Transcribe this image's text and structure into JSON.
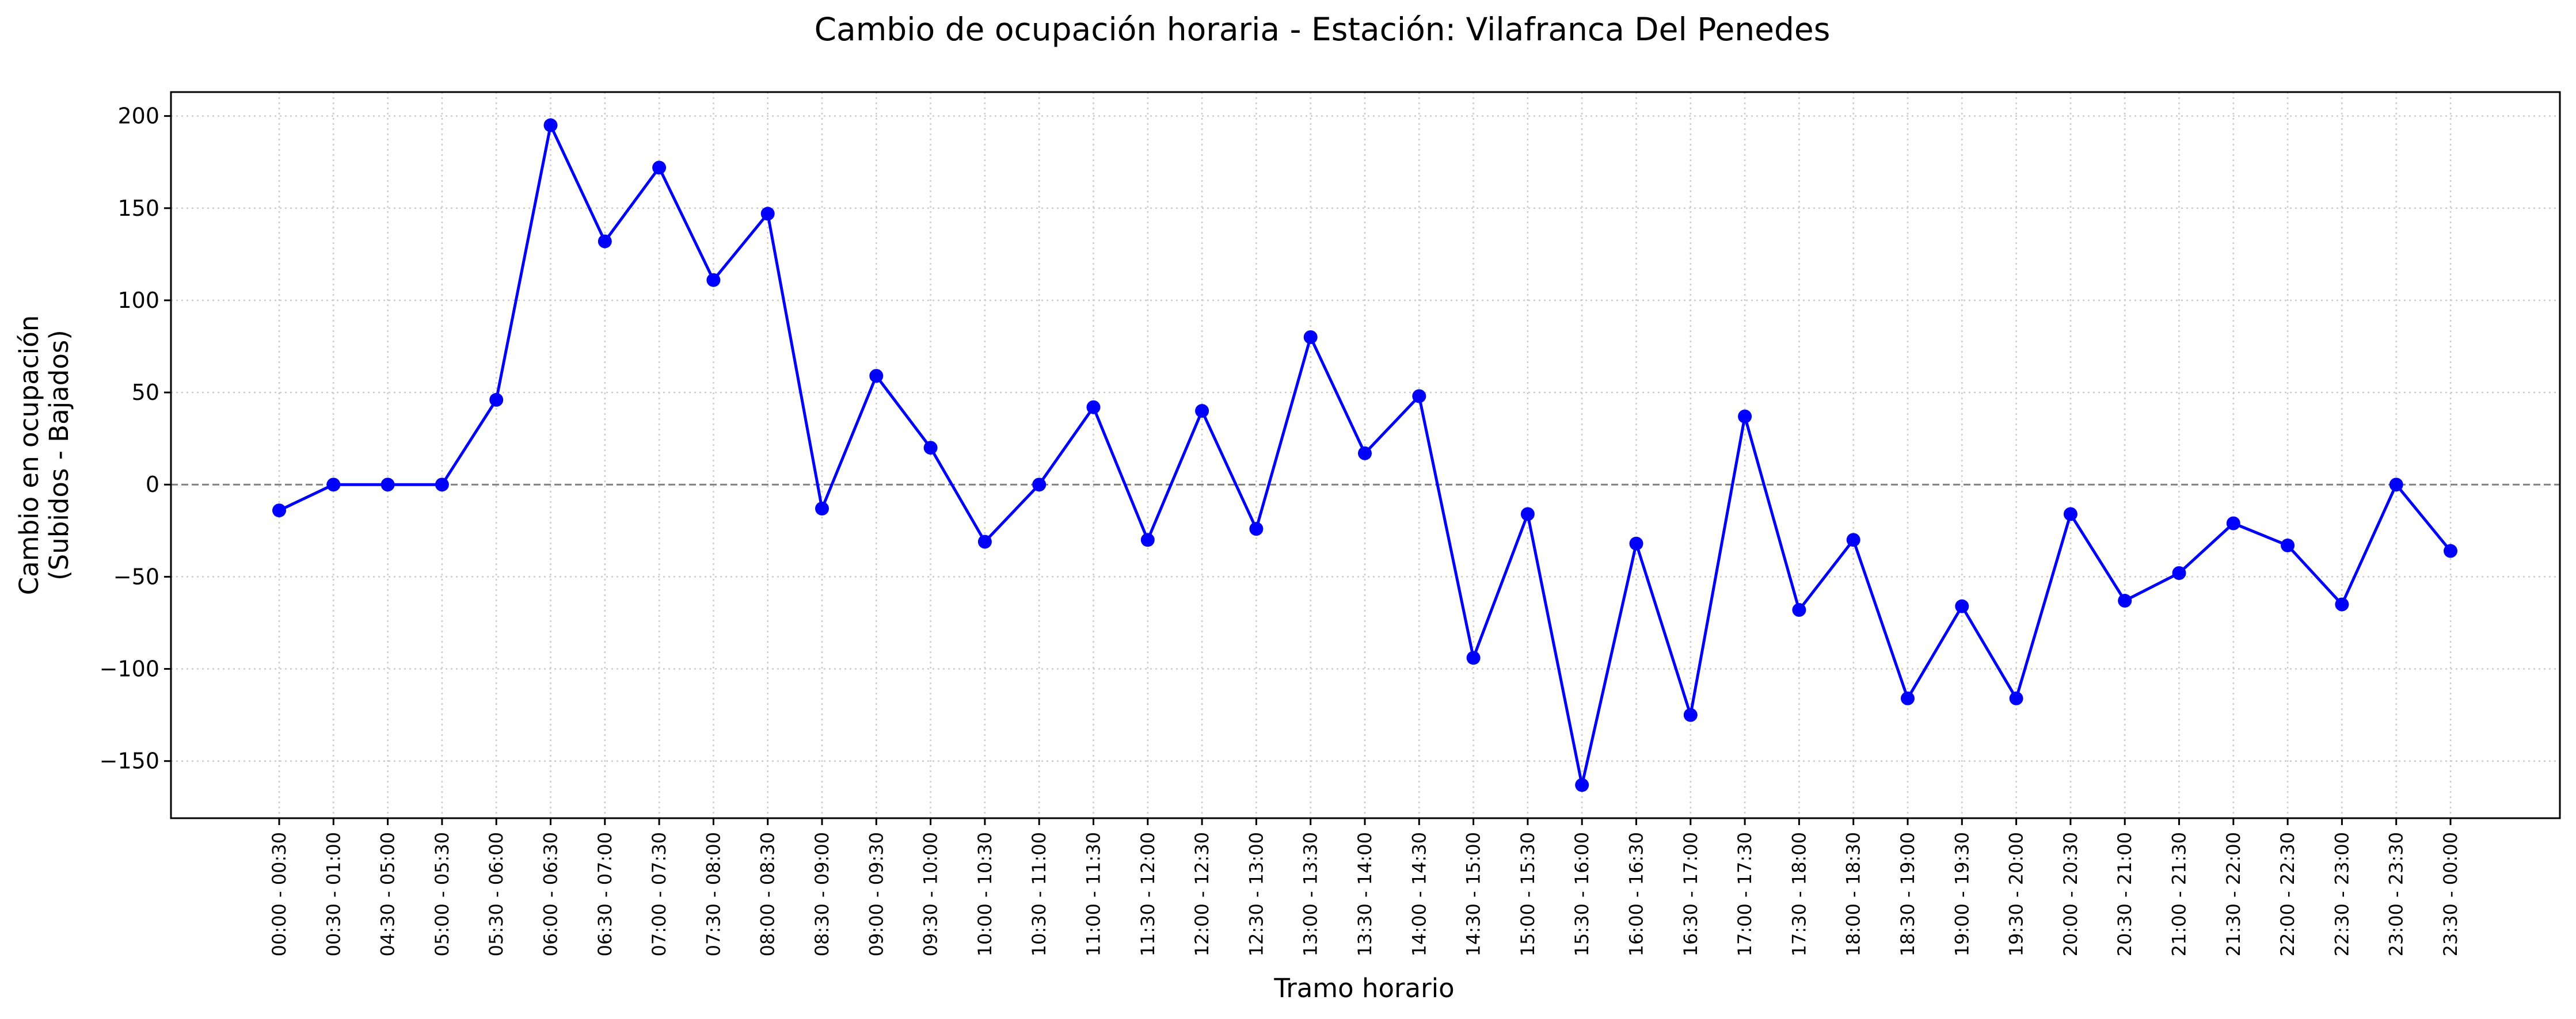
{
  "chart_data": {
    "type": "line",
    "title": "Cambio de ocupación horaria - Estación: Vilafranca Del Penedes",
    "xlabel": "Tramo horario",
    "ylabel_line1": "Cambio en ocupación",
    "ylabel_line2": "(Subidos - Bajados)",
    "ylim": [
      -181,
      213
    ],
    "yticks": [
      -150,
      -100,
      -50,
      0,
      50,
      100,
      150,
      200
    ],
    "ytick_labels": [
      "−150",
      "−100",
      "−50",
      "0",
      "50",
      "100",
      "150",
      "200"
    ],
    "grid": true,
    "reference_line": 0,
    "line_color": "#0000ff",
    "grid_color": "#cccccc",
    "reference_color": "#808080",
    "categories": [
      "00:00 - 00:30",
      "00:30 - 01:00",
      "04:30 - 05:00",
      "05:00 - 05:30",
      "05:30 - 06:00",
      "06:00 - 06:30",
      "06:30 - 07:00",
      "07:00 - 07:30",
      "07:30 - 08:00",
      "08:00 - 08:30",
      "08:30 - 09:00",
      "09:00 - 09:30",
      "09:30 - 10:00",
      "10:00 - 10:30",
      "10:30 - 11:00",
      "11:00 - 11:30",
      "11:30 - 12:00",
      "12:00 - 12:30",
      "12:30 - 13:00",
      "13:00 - 13:30",
      "13:30 - 14:00",
      "14:00 - 14:30",
      "14:30 - 15:00",
      "15:00 - 15:30",
      "15:30 - 16:00",
      "16:00 - 16:30",
      "16:30 - 17:00",
      "17:00 - 17:30",
      "17:30 - 18:00",
      "18:00 - 18:30",
      "18:30 - 19:00",
      "19:00 - 19:30",
      "19:30 - 20:00",
      "20:00 - 20:30",
      "20:30 - 21:00",
      "21:00 - 21:30",
      "21:30 - 22:00",
      "22:00 - 22:30",
      "22:30 - 23:00",
      "23:00 - 23:30",
      "23:30 - 00:00"
    ],
    "values": [
      -14,
      0,
      0,
      0,
      46,
      195,
      132,
      172,
      111,
      147,
      -13,
      59,
      20,
      -31,
      0,
      42,
      -30,
      40,
      -24,
      80,
      17,
      48,
      -94,
      -16,
      -163,
      -32,
      -125,
      37,
      -68,
      -30,
      -116,
      -66,
      -116,
      -16,
      -63,
      -48,
      -21,
      -33,
      -65,
      0,
      -36
    ]
  }
}
